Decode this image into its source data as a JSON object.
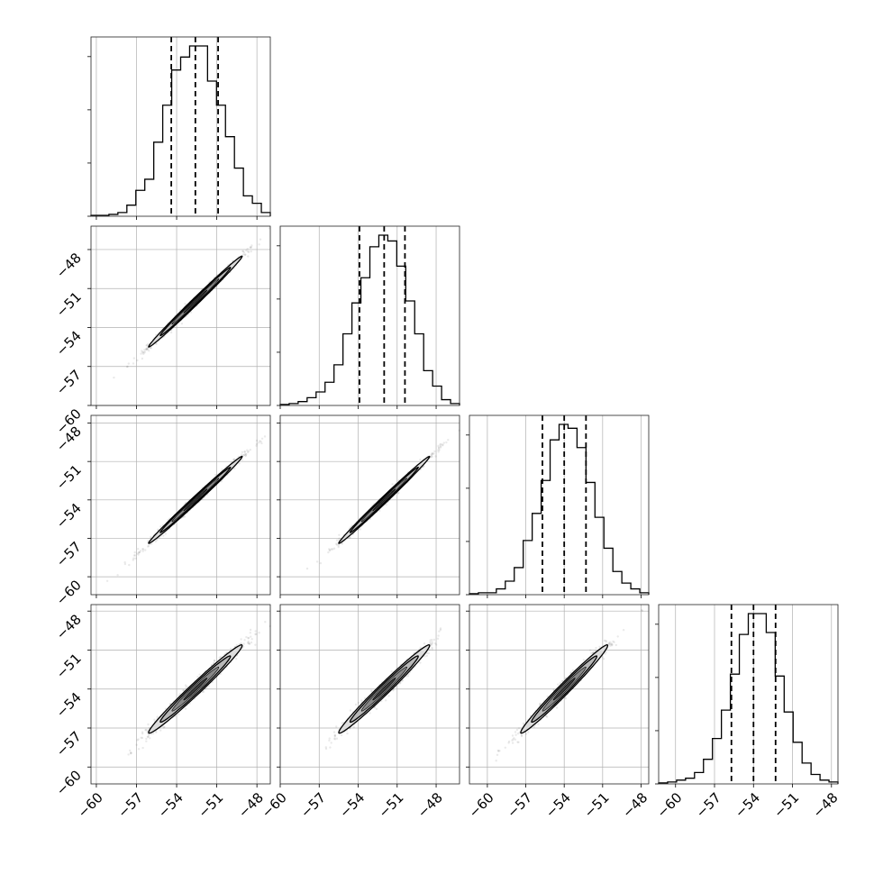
{
  "chart_data": {
    "type": "corner",
    "title": "",
    "parameters": [
      "",
      "",
      "",
      ""
    ],
    "ranges": [
      [
        -60.4,
        -47.0
      ],
      [
        -60.0,
        -46.2
      ],
      [
        -61.4,
        -47.4
      ],
      [
        -61.3,
        -47.5
      ]
    ],
    "ticks": [
      [
        -60,
        -57,
        -54,
        -51,
        -48
      ],
      [
        -60,
        -57,
        -54,
        -51,
        -48
      ],
      [
        -60,
        -57,
        -54,
        -51,
        -48
      ],
      [
        -60,
        -57,
        -54,
        -51,
        -48
      ]
    ],
    "tick_labels": [
      [
        "−60",
        "−57",
        "−54",
        "−51",
        "−48"
      ],
      [
        "−60",
        "−57",
        "−54",
        "−51",
        "−48"
      ],
      [
        "−60",
        "−57",
        "−54",
        "−51",
        "−48"
      ],
      [
        "−60",
        "−57",
        "−54",
        "−51",
        "−48"
      ]
    ],
    "quantiles": [
      [
        -54.4,
        -52.6,
        -50.9
      ],
      [
        -53.9,
        -52.0,
        -50.4
      ],
      [
        -55.7,
        -54.0,
        -52.3
      ],
      [
        -55.7,
        -54.0,
        -52.3
      ]
    ],
    "histograms": [
      {
        "edges_start": -60.4,
        "bin_width": 0.67,
        "counts": [
          0.5,
          0.5,
          1,
          2,
          6,
          14,
          20,
          40,
          60,
          79,
          86,
          92,
          92,
          73,
          60,
          43,
          26,
          11,
          7,
          2
        ]
      },
      {
        "edges_start": -60.0,
        "bin_width": 0.69,
        "counts": [
          0.5,
          1,
          2,
          4,
          7,
          12,
          21,
          37,
          53,
          66,
          82,
          88,
          85,
          72,
          54,
          37,
          18,
          10,
          3,
          1
        ]
      },
      {
        "edges_start": -61.4,
        "bin_width": 0.7,
        "counts": [
          0.5,
          1,
          1,
          3,
          7,
          14,
          28,
          42,
          59,
          80,
          88,
          86,
          76,
          58,
          40,
          24,
          12,
          6,
          3,
          1
        ]
      },
      {
        "edges_start": -61.3,
        "bin_width": 0.69,
        "counts": [
          0.5,
          1,
          2,
          3,
          6,
          13,
          24,
          39,
          58,
          79,
          90,
          90,
          80,
          57,
          38,
          22,
          11,
          5,
          2,
          1
        ]
      }
    ],
    "correlations": {
      "1-0": 0.995,
      "2-0": 0.995,
      "2-1": 0.995,
      "3-0": 0.985,
      "3-1": 0.985,
      "3-2": 0.985
    },
    "grid": true,
    "legend": "none"
  }
}
